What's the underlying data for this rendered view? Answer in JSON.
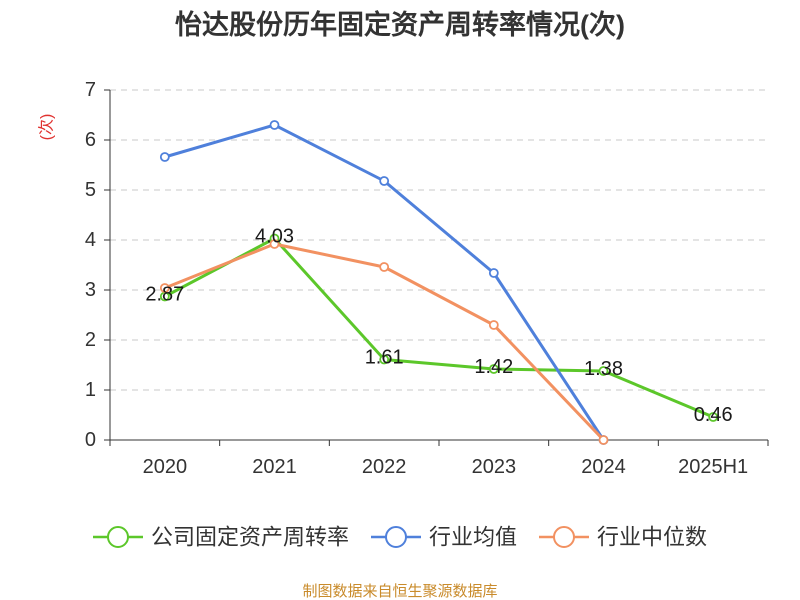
{
  "chart_data": {
    "type": "line",
    "title": "怡达股份历年固定资产周转率情况(次)",
    "xlabel": "",
    "ylabel": "(次)",
    "ylabel_color": "#e0312f",
    "categories": [
      "2020",
      "2021",
      "2022",
      "2023",
      "2024",
      "2025H1"
    ],
    "ylim": [
      0,
      7
    ],
    "yticks": [
      0,
      1,
      2,
      3,
      4,
      5,
      6,
      7
    ],
    "grid": true,
    "legend_position": "bottom",
    "series": [
      {
        "name": "公司固定资产周转率",
        "color": "#5cc72a",
        "values": [
          2.87,
          4.03,
          1.61,
          1.42,
          1.38,
          0.46
        ],
        "labels": [
          "2.87",
          "4.03",
          "1.61",
          "1.42",
          "1.38",
          "0.46"
        ]
      },
      {
        "name": "行业均值",
        "color": "#4f80db",
        "values": [
          5.66,
          6.3,
          5.18,
          3.34,
          0,
          null
        ]
      },
      {
        "name": "行业中位数",
        "color": "#f29161",
        "values": [
          3.04,
          3.92,
          3.46,
          2.3,
          0,
          null
        ]
      }
    ]
  },
  "footer": {
    "source": "制图数据来自恒生聚源数据库",
    "color": "#c98b2b"
  }
}
